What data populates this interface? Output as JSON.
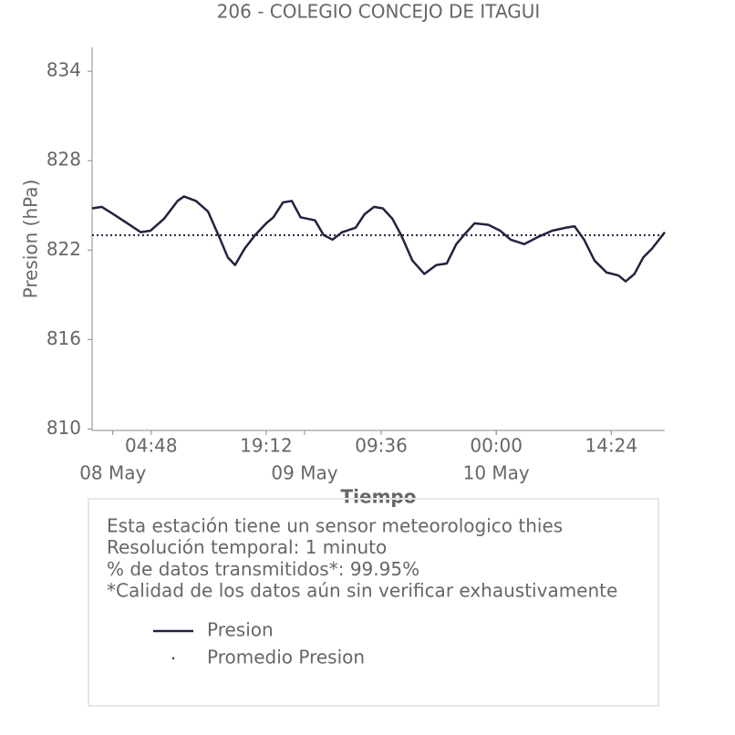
{
  "chart_data": {
    "type": "line",
    "title": "206 - COLEGIO CONCEJO DE ITAGUI",
    "x_label": "Tiempo",
    "y_label": "Presion (hPa)",
    "xlim": [
      -2.6,
      69.1
    ],
    "ylim": [
      809.9,
      835.6
    ],
    "yticks": [
      810,
      816,
      822,
      828,
      834
    ],
    "xticks": [
      {
        "value": 4.8,
        "label": "04:48"
      },
      {
        "value": 19.2,
        "label": "19:12"
      },
      {
        "value": 33.6,
        "label": "09:36"
      },
      {
        "value": 48,
        "label": "00:00"
      },
      {
        "value": 62.4,
        "label": "14:24"
      }
    ],
    "xticks_major": [
      {
        "value": 0,
        "label": "08 May"
      },
      {
        "value": 24,
        "label": "09 May"
      },
      {
        "value": 48,
        "label": "10 May"
      }
    ],
    "series": [
      {
        "name": "Presion",
        "color": "#23223f",
        "x": [
          -2.6,
          -1.4,
          0.1,
          1.8,
          3.5,
          4.7,
          6.4,
          8.1,
          8.9,
          10.4,
          11.9,
          13.3,
          14.4,
          15.3,
          16.5,
          17.8,
          19.2,
          20.1,
          21.3,
          22.4,
          23.5,
          25.3,
          26.4,
          27.5,
          28.7,
          30.4,
          31.5,
          32.7,
          33.8,
          35.0,
          36.1,
          37.5,
          39.0,
          40.5,
          41.8,
          43.0,
          44.1,
          45.3,
          47.0,
          48.5,
          49.8,
          51.5,
          53.3,
          55.0,
          56.7,
          57.8,
          59.0,
          60.3,
          61.8,
          63.3,
          64.2,
          65.3,
          66.4,
          67.5,
          69.1
        ],
        "values": [
          824.8,
          824.9,
          824.4,
          823.8,
          823.2,
          823.3,
          824.1,
          825.3,
          825.6,
          825.3,
          824.6,
          822.9,
          821.5,
          821.0,
          822.1,
          823.0,
          823.8,
          824.2,
          825.2,
          825.3,
          824.2,
          824.0,
          823.0,
          822.7,
          823.2,
          823.5,
          824.4,
          824.9,
          824.8,
          824.1,
          823.0,
          821.3,
          820.4,
          821.0,
          821.1,
          822.4,
          823.1,
          823.8,
          823.7,
          823.3,
          822.7,
          822.4,
          822.9,
          823.3,
          823.5,
          823.6,
          822.7,
          821.3,
          820.5,
          820.3,
          819.9,
          820.4,
          821.5,
          822.1,
          823.2
        ]
      }
    ],
    "reference_line": {
      "name": "Promedio Presion",
      "value": 823.0,
      "color": "#23223f"
    },
    "notes": [
      "Esta estación tiene un sensor meteorologico thies",
      "Resolución temporal: 1 minuto",
      "% de datos transmitidos*: 99.95%",
      "*Calidad de los datos aún sin verificar exhaustivamente"
    ]
  }
}
